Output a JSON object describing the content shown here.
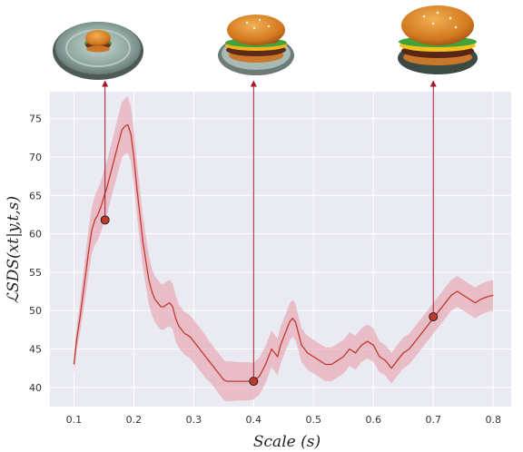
{
  "chart_data": {
    "type": "line",
    "xlabel": "Scale (s)",
    "ylabel": "ℒSDS(xt|y,t,s)",
    "xlim": [
      0.06,
      0.83
    ],
    "ylim": [
      37.5,
      78.5
    ],
    "xticks": [
      "0.1",
      "0.2",
      "0.3",
      "0.4",
      "0.5",
      "0.6",
      "0.7",
      "0.8"
    ],
    "yticks": [
      "40",
      "45",
      "50",
      "55",
      "60",
      "65",
      "70",
      "75"
    ],
    "grid": true,
    "series": [
      {
        "x": [
          0.1,
          0.105,
          0.11,
          0.115,
          0.12,
          0.125,
          0.13,
          0.135,
          0.14,
          0.145,
          0.15,
          0.155,
          0.16,
          0.165,
          0.17,
          0.175,
          0.18,
          0.185,
          0.19,
          0.195,
          0.2,
          0.205,
          0.21,
          0.215,
          0.22,
          0.225,
          0.23,
          0.235,
          0.24,
          0.245,
          0.25,
          0.255,
          0.26,
          0.265,
          0.27,
          0.275,
          0.28,
          0.285,
          0.29,
          0.295,
          0.3,
          0.305,
          0.31,
          0.315,
          0.32,
          0.325,
          0.33,
          0.335,
          0.34,
          0.345,
          0.35,
          0.355,
          0.36,
          0.365,
          0.37,
          0.38,
          0.39,
          0.4,
          0.41,
          0.42,
          0.43,
          0.44,
          0.445,
          0.45,
          0.455,
          0.46,
          0.465,
          0.47,
          0.475,
          0.48,
          0.485,
          0.49,
          0.5,
          0.51,
          0.52,
          0.53,
          0.54,
          0.55,
          0.56,
          0.57,
          0.58,
          0.59,
          0.6,
          0.61,
          0.62,
          0.63,
          0.64,
          0.65,
          0.66,
          0.67,
          0.68,
          0.69,
          0.7,
          0.71,
          0.72,
          0.73,
          0.74,
          0.75,
          0.76,
          0.77,
          0.78,
          0.79,
          0.8
        ],
        "values": [
          43.0,
          46.5,
          49.0,
          52.0,
          55.0,
          58.0,
          60.5,
          61.8,
          62.5,
          63.5,
          64.8,
          66.0,
          67.5,
          69.0,
          70.5,
          72.0,
          73.5,
          74.0,
          74.2,
          73.0,
          70.0,
          66.0,
          62.5,
          59.0,
          56.5,
          54.0,
          52.5,
          51.5,
          51.0,
          50.5,
          50.5,
          50.8,
          51.0,
          50.5,
          49.0,
          48.0,
          47.5,
          47.0,
          46.8,
          46.5,
          46.0,
          45.5,
          45.0,
          44.5,
          44.0,
          43.5,
          43.0,
          42.5,
          42.0,
          41.5,
          41.0,
          40.8,
          40.8,
          40.8,
          40.8,
          40.8,
          40.8,
          40.8,
          41.5,
          43.0,
          45.0,
          44.0,
          45.5,
          46.5,
          47.5,
          48.5,
          49.0,
          48.5,
          47.0,
          45.5,
          45.0,
          44.5,
          44.0,
          43.5,
          43.0,
          43.0,
          43.5,
          44.0,
          45.0,
          44.5,
          45.5,
          46.0,
          45.5,
          44.0,
          43.5,
          42.5,
          43.5,
          44.5,
          45.0,
          46.0,
          47.0,
          48.0,
          49.0,
          50.0,
          51.0,
          52.0,
          52.5,
          52.0,
          51.5,
          51.0,
          51.5,
          51.8,
          52.0
        ],
        "spread": [
          1.2,
          1.5,
          2.0,
          2.5,
          2.8,
          3.0,
          3.0,
          3.2,
          3.3,
          3.3,
          3.4,
          3.5,
          3.5,
          3.5,
          3.6,
          3.6,
          3.6,
          3.6,
          3.7,
          3.6,
          3.6,
          3.5,
          3.5,
          3.4,
          3.3,
          3.2,
          3.0,
          3.0,
          3.0,
          3.0,
          3.0,
          3.0,
          3.0,
          3.0,
          3.0,
          2.8,
          2.8,
          2.8,
          2.8,
          2.8,
          2.8,
          2.8,
          2.8,
          2.8,
          2.8,
          2.6,
          2.6,
          2.6,
          2.6,
          2.6,
          2.6,
          2.6,
          2.6,
          2.6,
          2.5,
          2.5,
          2.5,
          2.4,
          2.4,
          2.4,
          2.4,
          2.4,
          2.4,
          2.4,
          2.4,
          2.4,
          2.4,
          2.4,
          2.2,
          2.2,
          2.2,
          2.2,
          2.2,
          2.2,
          2.2,
          2.2,
          2.2,
          2.2,
          2.2,
          2.2,
          2.2,
          2.2,
          2.2,
          2.0,
          2.0,
          2.0,
          2.0,
          2.0,
          2.0,
          2.0,
          2.0,
          2.0,
          2.0,
          2.0,
          2.0,
          2.0,
          2.0,
          2.0,
          2.0,
          2.0,
          2.0,
          2.0,
          2.0
        ]
      }
    ],
    "markers": [
      {
        "x": 0.152,
        "y": 61.8
      },
      {
        "x": 0.4,
        "y": 40.8
      },
      {
        "x": 0.7,
        "y": 49.2
      }
    ],
    "thumbnails": [
      "burger-small-plate",
      "burger-medium-plate",
      "burger-large-plate"
    ],
    "colors": {
      "line": "#c0392b",
      "band": "#e8a5b0",
      "marker": "#c0392b",
      "plot_bg": "#eaeaf2",
      "grid": "#ffffff",
      "arrow": "#a31a2a"
    }
  }
}
